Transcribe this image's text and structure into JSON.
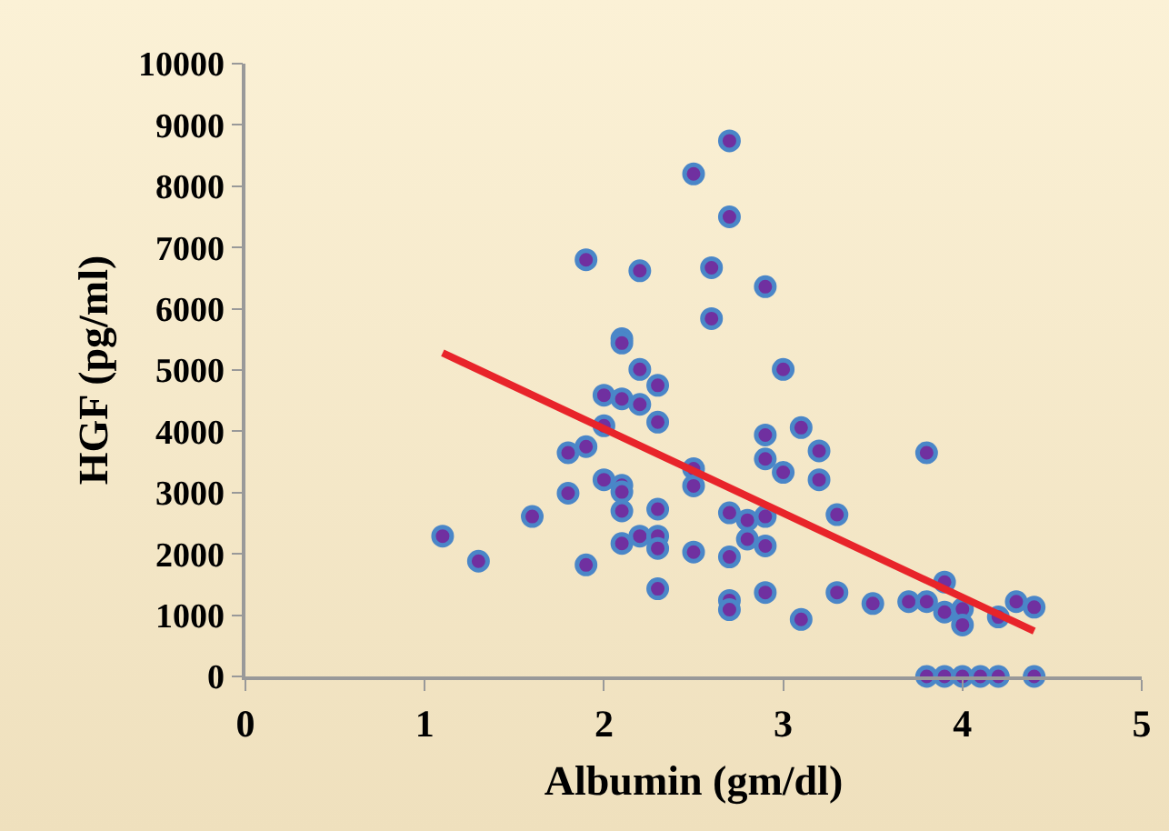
{
  "chart_data": {
    "type": "scatter",
    "xlabel": "Albumin (gm/dl)",
    "ylabel": "HGF (pg/ml)",
    "xlim": [
      0,
      5
    ],
    "xticks": [
      0,
      1,
      2,
      3,
      4,
      5
    ],
    "ylim": [
      0,
      10000
    ],
    "yticks": [
      0,
      1000,
      2000,
      3000,
      4000,
      5000,
      6000,
      7000,
      8000,
      9000,
      10000
    ],
    "grid": false,
    "marker": "circle",
    "series": [
      {
        "color": "#7030a0",
        "x": [
          1.1,
          1.3,
          1.6,
          1.8,
          1.8,
          1.9,
          1.9,
          1.9,
          2.0,
          2.0,
          2.0,
          2.1,
          2.1,
          2.1,
          2.1,
          2.1,
          2.1,
          2.1,
          2.2,
          2.2,
          2.2,
          2.2,
          2.3,
          2.3,
          2.3,
          2.3,
          2.3,
          2.3,
          2.5,
          2.5,
          2.5,
          2.5,
          2.6,
          2.6,
          2.7,
          2.7,
          2.7,
          2.7,
          2.7,
          2.7,
          2.8,
          2.8,
          2.9,
          2.9,
          2.9,
          2.9,
          2.9,
          2.9,
          3.0,
          3.0,
          3.1,
          3.1,
          3.2,
          3.2,
          3.3,
          3.3,
          3.5,
          3.7,
          3.8,
          3.8,
          3.8,
          3.9,
          3.9,
          3.9,
          4.0,
          4.0,
          4.0,
          4.1,
          4.2,
          4.2,
          4.3,
          4.4,
          4.4
        ],
        "values": [
          2290,
          1880,
          2610,
          3650,
          2990,
          6800,
          3750,
          1820,
          4590,
          4090,
          3210,
          5510,
          5440,
          4530,
          3120,
          3010,
          2700,
          2170,
          6620,
          5010,
          4440,
          2290,
          4750,
          4150,
          2730,
          2290,
          2090,
          1430,
          8200,
          3390,
          3110,
          2030,
          6670,
          5840,
          8740,
          7500,
          2670,
          1950,
          1240,
          1090,
          2550,
          2240,
          6360,
          3940,
          3550,
          2610,
          2130,
          1370,
          5010,
          3330,
          4060,
          930,
          3680,
          3210,
          2640,
          1370,
          1190,
          1220,
          3650,
          1220,
          0,
          1540,
          1050,
          0,
          1100,
          840,
          0,
          0,
          970,
          0,
          1220,
          1130,
          0
        ]
      },
      {
        "type": "line",
        "color": "#e8242a",
        "marker": "none",
        "x": [
          1.1,
          4.4
        ],
        "values": [
          5280,
          740
        ]
      }
    ]
  }
}
